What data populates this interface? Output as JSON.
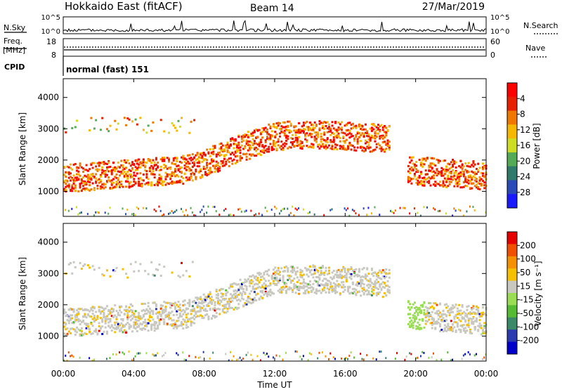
{
  "header": {
    "station": "Hokkaido East (fitACF)",
    "beam": "Beam 14",
    "date": "27/Mar/2019"
  },
  "strips": {
    "nsky_label": "N.Sky",
    "nsky_ticks": [
      "10^5",
      "10^0"
    ],
    "nsearch_label": "N.Search",
    "nsearch_ticks": [
      "10^5",
      "10^0"
    ],
    "freq_label": "Freq.",
    "freq_unit": "[MHz]",
    "freq_ticks": [
      "18",
      "8"
    ],
    "nave_label": "Nave",
    "nave_ticks": [
      "60",
      "0"
    ],
    "cpid_label": "CPID",
    "cpid_value": "normal (fast) 151"
  },
  "chart_data": [
    {
      "type": "heatmap",
      "name": "power",
      "ylabel": "Slant Range [km]",
      "ylim": [
        200,
        4600
      ],
      "yticks": [
        "1000",
        "2000",
        "3000",
        "4000"
      ],
      "colorbar": {
        "label": "Power [dB]",
        "range": [
          0,
          32
        ],
        "ticks": [
          "4",
          "8",
          "12",
          "16",
          "20",
          "24",
          "28"
        ],
        "colors": [
          "#1a1aff",
          "#2a4ab8",
          "#2f7a6a",
          "#55aa55",
          "#ccdd22",
          "#f5b700",
          "#f07800",
          "#e62000",
          "#ff0000"
        ]
      },
      "features": [
        {
          "band": "lower",
          "t_start": 0,
          "t_end": 24,
          "range_km": "1000-2900"
        },
        {
          "band": "upper",
          "t_start": 0,
          "t_end": 7.5,
          "range_km": "2700-3400"
        }
      ]
    },
    {
      "type": "heatmap",
      "name": "velocity",
      "ylabel": "Slant Range [km]",
      "ylim": [
        200,
        4600
      ],
      "yticks": [
        "1000",
        "2000",
        "3000",
        "4000"
      ],
      "colorbar": {
        "label": "Velocity [m s^-1]",
        "range": [
          -250,
          250
        ],
        "ticks": [
          "200",
          "100",
          "50",
          "15",
          "-15",
          "-50",
          "-100",
          "-200"
        ],
        "colors": [
          "#0000cc",
          "#2a3ab0",
          "#3a8a6a",
          "#55bb33",
          "#99dd55",
          "#c8c8c0",
          "#f5c000",
          "#f59000",
          "#f05000",
          "#e60000"
        ]
      }
    }
  ],
  "xaxis": {
    "label": "Time UT",
    "ticks": [
      "00:00",
      "04:00",
      "08:00",
      "12:00",
      "16:00",
      "20:00",
      "00:00"
    ],
    "range_hours": [
      0,
      24
    ]
  }
}
